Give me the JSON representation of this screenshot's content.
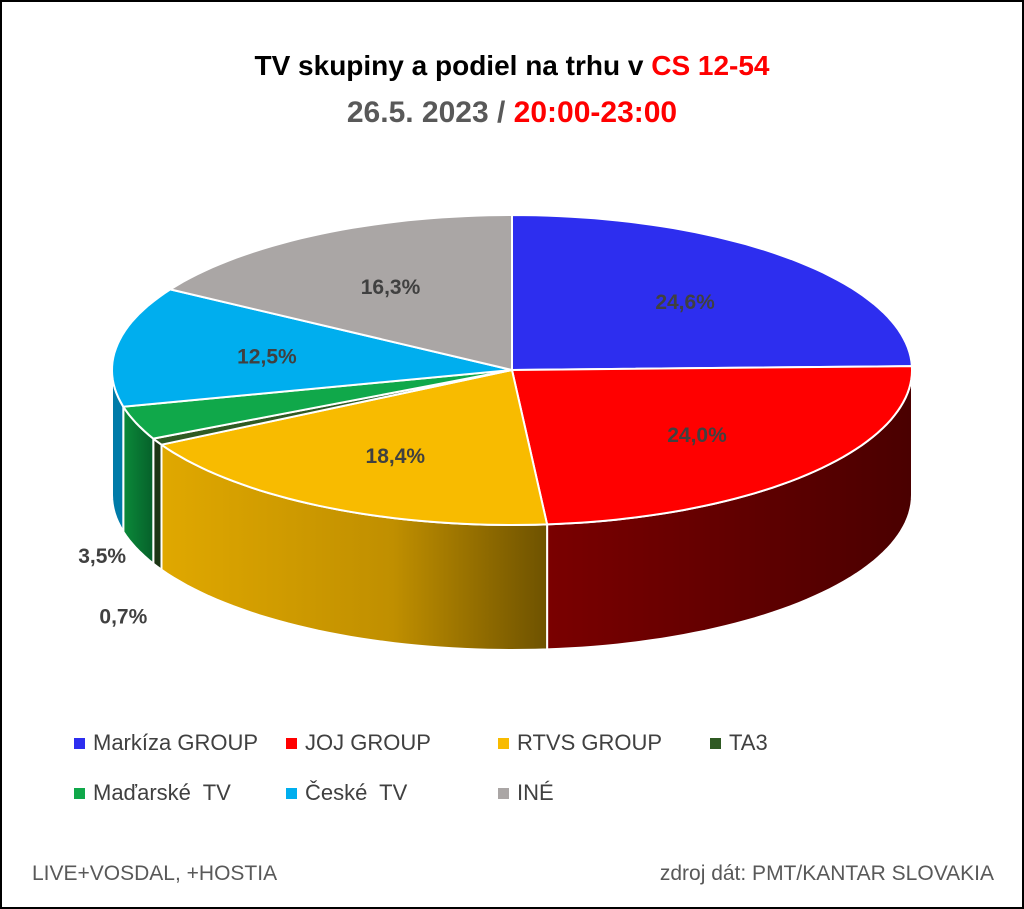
{
  "title": {
    "line1_main": "TV skupiny a podiel na trhu v ",
    "line1_accent": "CS 12-54",
    "line2_main": "26.5. 2023 / ",
    "line2_accent": "20:00-23:00"
  },
  "chart_data": {
    "type": "pie",
    "title": "TV skupiny a podiel na trhu v CS 12-54 — 26.5. 2023 / 20:00-23:00",
    "categories": [
      "Markíza GROUP",
      "JOJ GROUP",
      "RTVS GROUP",
      "TA3",
      "Maďarské  TV",
      "České  TV",
      "INÉ"
    ],
    "values": [
      24.6,
      24.0,
      18.4,
      0.7,
      3.5,
      12.5,
      16.3
    ],
    "data_labels": [
      "24,6%",
      "24,0%",
      "18,4%",
      "0,7%",
      "3,5%",
      "12,5%",
      "16,3%"
    ],
    "colors": [
      "#2d2eef",
      "#ff0000",
      "#f8bb00",
      "#2f5a23",
      "#10a84a",
      "#00aeee",
      "#aaa6a5"
    ],
    "side_colors": [
      "#1b1c90",
      "#5c0000",
      "#b88a00",
      "#1c3615",
      "#0a6a2e",
      "#007ba8",
      "#6e6b6a"
    ],
    "legend_position": "bottom",
    "style": "3d-pie"
  },
  "footer": {
    "left": "LIVE+VOSDAL, +HOSTIA",
    "right": "zdroj dát: PMT/KANTAR SLOVAKIA"
  }
}
